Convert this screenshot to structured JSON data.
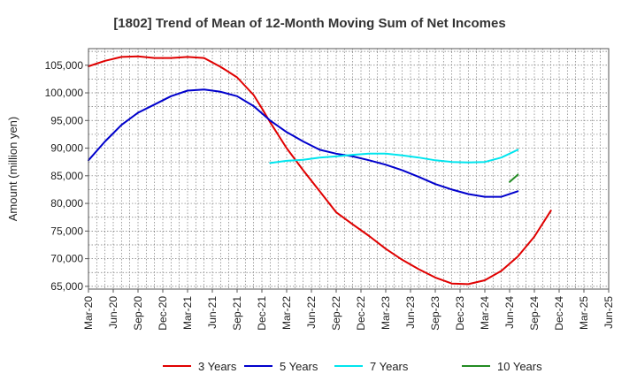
{
  "chart_data": {
    "type": "line",
    "title": "[1802]  Trend of Mean of 12-Month Moving Sum of Net Incomes",
    "xlabel": "",
    "ylabel": "Amount (million yen)",
    "ylim": [
      64500,
      108000
    ],
    "yticks": [
      65000,
      70000,
      75000,
      80000,
      85000,
      90000,
      95000,
      100000,
      105000
    ],
    "ytick_labels": [
      "65,000",
      "70,000",
      "75,000",
      "80,000",
      "85,000",
      "90,000",
      "95,000",
      "100,000",
      "105,000"
    ],
    "xlim": [
      0,
      63
    ],
    "xticks": [
      0,
      3,
      6,
      9,
      12,
      15,
      18,
      21,
      24,
      27,
      30,
      33,
      36,
      39,
      42,
      45,
      48,
      51,
      54,
      57,
      60,
      63
    ],
    "xtick_labels": [
      "Mar-20",
      "Jun-20",
      "Sep-20",
      "Dec-20",
      "Mar-21",
      "Jun-21",
      "Sep-21",
      "Dec-21",
      "Mar-22",
      "Jun-22",
      "Sep-22",
      "Dec-22",
      "Mar-23",
      "Jun-23",
      "Sep-23",
      "Dec-23",
      "Mar-24",
      "Jun-24",
      "Sep-24",
      "Dec-24",
      "Mar-25",
      "Jun-25"
    ],
    "grid": true,
    "legend_position": "bottom",
    "series": [
      {
        "name": "3 Years",
        "color": "#e00000",
        "x": [
          0,
          2,
          4,
          6,
          8,
          10,
          12,
          14,
          16,
          18,
          20,
          21,
          22,
          24,
          26,
          28,
          30,
          32,
          34,
          36,
          38,
          40,
          42,
          44,
          46,
          48,
          50,
          52,
          54,
          56,
          58,
          59,
          60
        ],
        "y": [
          104800,
          105800,
          106500,
          106600,
          106300,
          106300,
          106500,
          106300,
          104700,
          102800,
          99600,
          97200,
          94700,
          90000,
          86000,
          82200,
          78400,
          76200,
          74100,
          71800,
          69800,
          68100,
          66600,
          65500,
          65400,
          66100,
          67800,
          70400,
          74000,
          78700,
          null,
          null,
          null
        ]
      },
      {
        "name": "5 Years",
        "color": "#0000cc",
        "x": [
          0,
          2,
          4,
          6,
          8,
          10,
          12,
          14,
          16,
          18,
          20,
          22,
          24,
          26,
          28,
          30,
          32,
          34,
          36,
          38,
          40,
          42,
          44,
          46,
          48,
          50,
          52,
          54,
          56,
          58,
          60
        ],
        "y": [
          87800,
          91200,
          94200,
          96400,
          97900,
          99400,
          100400,
          100600,
          100200,
          99400,
          97600,
          95000,
          92900,
          91200,
          89700,
          89000,
          88500,
          87800,
          87000,
          86000,
          84800,
          83500,
          82500,
          81700,
          81200,
          81200,
          82200,
          null,
          null,
          null,
          null
        ]
      },
      {
        "name": "7 Years",
        "color": "#00e5ee",
        "x": [
          22,
          24,
          26,
          28,
          30,
          32,
          34,
          36,
          38,
          40,
          42,
          44,
          46,
          48,
          50,
          52
        ],
        "y": [
          87300,
          87700,
          87900,
          88300,
          88500,
          88800,
          89000,
          89000,
          88700,
          88300,
          87800,
          87500,
          87400,
          87500,
          88300,
          89700
        ]
      },
      {
        "name": "10 Years",
        "color": "#228b22",
        "x": [
          51,
          52
        ],
        "y": [
          83900,
          85200
        ]
      }
    ]
  }
}
